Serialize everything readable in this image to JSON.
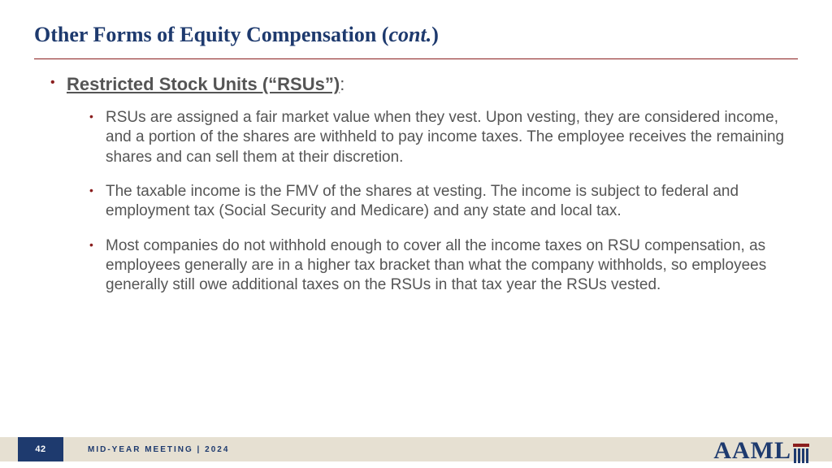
{
  "colors": {
    "title": "#1e3a6e",
    "rule": "#8a1e1e",
    "body_text": "#555555",
    "bullet": "#8a1e1e",
    "footer_bar": "#e6e0d2",
    "page_box": "#1e3a6e",
    "page_num_text": "#ffffff",
    "background": "#ffffff"
  },
  "title": {
    "main": "Other Forms of Equity Compensation (",
    "cont": "cont.",
    "close": ")"
  },
  "section_heading": "Restricted Stock Units (“RSUs”)",
  "section_heading_suffix": ":",
  "bullets": [
    "RSUs are assigned a fair market value when they vest. Upon vesting, they are considered income, and a portion of the shares are withheld to pay income taxes. The employee receives the remaining shares and can sell them at their discretion.",
    "The taxable income is the FMV of the shares at vesting. The income is subject to federal and employment tax (Social Security and Medicare) and any state and local tax.",
    "Most companies do not withhold enough to cover all the income taxes on RSU compensation, as employees generally are in a higher tax bracket than what the company withholds, so employees generally still owe additional taxes on the RSUs in that tax year the RSUs vested."
  ],
  "footer": {
    "page_number": "42",
    "text": "MID-YEAR MEETING | 2024",
    "logo_text": "AAML",
    "logo_tm": "™"
  },
  "typography": {
    "title_fontsize": 26,
    "heading_fontsize": 22,
    "body_fontsize": 19,
    "footer_fontsize": 10,
    "page_num_fontsize": 11,
    "logo_fontsize": 30
  }
}
